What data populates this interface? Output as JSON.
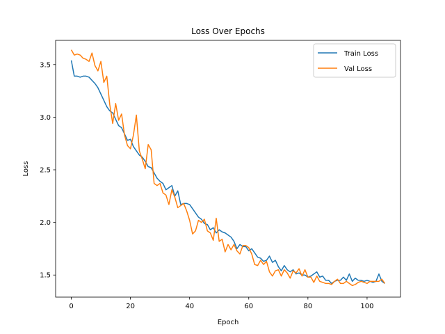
{
  "chart_data": {
    "type": "line",
    "title": "Loss Over Epochs",
    "xlabel": "Epoch",
    "ylabel": "Loss",
    "xlim": [
      -5.3,
      111.3
    ],
    "ylim": [
      1.29,
      3.73
    ],
    "xticks": [
      0,
      20,
      40,
      60,
      80,
      100
    ],
    "yticks": [
      1.5,
      2.0,
      2.5,
      3.0,
      3.5
    ],
    "grid": false,
    "legend_position": "top-right",
    "series": [
      {
        "name": "Train Loss",
        "color": "#1f77b4",
        "points": [
          [
            0,
            3.54
          ],
          [
            1,
            3.39
          ],
          [
            2,
            3.39
          ],
          [
            3,
            3.38
          ],
          [
            4,
            3.39
          ],
          [
            5,
            3.39
          ],
          [
            6,
            3.38
          ],
          [
            7,
            3.35
          ],
          [
            8,
            3.32
          ],
          [
            9,
            3.28
          ],
          [
            10,
            3.22
          ],
          [
            11,
            3.16
          ],
          [
            12,
            3.1
          ],
          [
            13,
            3.06
          ],
          [
            14,
            3.04
          ],
          [
            15,
            2.98
          ],
          [
            16,
            2.92
          ],
          [
            17,
            2.9
          ],
          [
            18,
            2.84
          ],
          [
            19,
            2.78
          ],
          [
            20,
            2.79
          ],
          [
            21,
            2.72
          ],
          [
            22,
            2.68
          ],
          [
            23,
            2.64
          ],
          [
            24,
            2.62
          ],
          [
            25,
            2.58
          ],
          [
            26,
            2.53
          ],
          [
            27,
            2.52
          ],
          [
            28,
            2.47
          ],
          [
            29,
            2.42
          ],
          [
            30,
            2.39
          ],
          [
            31,
            2.37
          ],
          [
            32,
            2.31
          ],
          [
            33,
            2.33
          ],
          [
            34,
            2.35
          ],
          [
            35,
            2.25
          ],
          [
            36,
            2.3
          ],
          [
            37,
            2.17
          ],
          [
            38,
            2.18
          ],
          [
            39,
            2.18
          ],
          [
            40,
            2.17
          ],
          [
            41,
            2.13
          ],
          [
            42,
            2.09
          ],
          [
            43,
            2.05
          ],
          [
            44,
            2.03
          ],
          [
            45,
            1.99
          ],
          [
            46,
            1.98
          ],
          [
            47,
            1.93
          ],
          [
            48,
            1.95
          ],
          [
            49,
            1.9
          ],
          [
            50,
            1.93
          ],
          [
            51,
            1.91
          ],
          [
            52,
            1.9
          ],
          [
            53,
            1.88
          ],
          [
            54,
            1.86
          ],
          [
            55,
            1.82
          ],
          [
            56,
            1.75
          ],
          [
            57,
            1.79
          ],
          [
            58,
            1.77
          ],
          [
            59,
            1.77
          ],
          [
            60,
            1.73
          ],
          [
            61,
            1.75
          ],
          [
            62,
            1.71
          ],
          [
            63,
            1.67
          ],
          [
            64,
            1.66
          ],
          [
            65,
            1.63
          ],
          [
            66,
            1.64
          ],
          [
            67,
            1.68
          ],
          [
            68,
            1.62
          ],
          [
            69,
            1.64
          ],
          [
            70,
            1.58
          ],
          [
            71,
            1.54
          ],
          [
            72,
            1.59
          ],
          [
            73,
            1.55
          ],
          [
            74,
            1.53
          ],
          [
            75,
            1.55
          ],
          [
            76,
            1.51
          ],
          [
            77,
            1.52
          ],
          [
            78,
            1.5
          ],
          [
            79,
            1.5
          ],
          [
            80,
            1.48
          ],
          [
            81,
            1.49
          ],
          [
            82,
            1.51
          ],
          [
            83,
            1.53
          ],
          [
            84,
            1.48
          ],
          [
            85,
            1.49
          ],
          [
            86,
            1.45
          ],
          [
            87,
            1.45
          ],
          [
            88,
            1.42
          ],
          [
            89,
            1.44
          ],
          [
            90,
            1.45
          ],
          [
            91,
            1.45
          ],
          [
            92,
            1.48
          ],
          [
            93,
            1.45
          ],
          [
            94,
            1.51
          ],
          [
            95,
            1.44
          ],
          [
            96,
            1.47
          ],
          [
            97,
            1.45
          ],
          [
            98,
            1.45
          ],
          [
            99,
            1.44
          ],
          [
            100,
            1.45
          ],
          [
            101,
            1.44
          ],
          [
            102,
            1.43
          ],
          [
            103,
            1.44
          ],
          [
            104,
            1.51
          ],
          [
            105,
            1.44
          ],
          [
            106,
            1.42
          ]
        ]
      },
      {
        "name": "Val Loss",
        "color": "#ff7f0e",
        "points": [
          [
            0,
            3.64
          ],
          [
            1,
            3.59
          ],
          [
            2,
            3.6
          ],
          [
            3,
            3.59
          ],
          [
            4,
            3.56
          ],
          [
            5,
            3.55
          ],
          [
            6,
            3.53
          ],
          [
            7,
            3.61
          ],
          [
            8,
            3.49
          ],
          [
            9,
            3.44
          ],
          [
            10,
            3.53
          ],
          [
            11,
            3.33
          ],
          [
            12,
            3.39
          ],
          [
            13,
            3.12
          ],
          [
            14,
            2.94
          ],
          [
            15,
            3.13
          ],
          [
            16,
            2.97
          ],
          [
            17,
            3.03
          ],
          [
            18,
            2.83
          ],
          [
            19,
            2.73
          ],
          [
            20,
            2.7
          ],
          [
            21,
            2.83
          ],
          [
            22,
            3.02
          ],
          [
            23,
            2.68
          ],
          [
            24,
            2.6
          ],
          [
            25,
            2.51
          ],
          [
            26,
            2.74
          ],
          [
            27,
            2.69
          ],
          [
            28,
            2.37
          ],
          [
            29,
            2.35
          ],
          [
            30,
            2.37
          ],
          [
            31,
            2.28
          ],
          [
            32,
            2.26
          ],
          [
            33,
            2.17
          ],
          [
            34,
            2.31
          ],
          [
            35,
            2.24
          ],
          [
            36,
            2.14
          ],
          [
            37,
            2.16
          ],
          [
            38,
            2.18
          ],
          [
            39,
            2.11
          ],
          [
            40,
            2.02
          ],
          [
            41,
            1.89
          ],
          [
            42,
            1.92
          ],
          [
            43,
            2.02
          ],
          [
            44,
            2.0
          ],
          [
            45,
            2.03
          ],
          [
            46,
            1.92
          ],
          [
            47,
            1.9
          ],
          [
            48,
            1.83
          ],
          [
            49,
            2.04
          ],
          [
            50,
            1.82
          ],
          [
            51,
            1.84
          ],
          [
            52,
            1.72
          ],
          [
            53,
            1.79
          ],
          [
            54,
            1.74
          ],
          [
            55,
            1.79
          ],
          [
            56,
            1.73
          ],
          [
            57,
            1.7
          ],
          [
            58,
            1.78
          ],
          [
            59,
            1.78
          ],
          [
            60,
            1.76
          ],
          [
            61,
            1.7
          ],
          [
            62,
            1.6
          ],
          [
            63,
            1.59
          ],
          [
            64,
            1.64
          ],
          [
            65,
            1.6
          ],
          [
            66,
            1.63
          ],
          [
            67,
            1.53
          ],
          [
            68,
            1.49
          ],
          [
            69,
            1.54
          ],
          [
            70,
            1.55
          ],
          [
            71,
            1.49
          ],
          [
            72,
            1.55
          ],
          [
            73,
            1.52
          ],
          [
            74,
            1.47
          ],
          [
            75,
            1.54
          ],
          [
            76,
            1.52
          ],
          [
            77,
            1.56
          ],
          [
            78,
            1.49
          ],
          [
            79,
            1.55
          ],
          [
            80,
            1.48
          ],
          [
            81,
            1.48
          ],
          [
            82,
            1.43
          ],
          [
            83,
            1.49
          ],
          [
            84,
            1.44
          ],
          [
            85,
            1.43
          ],
          [
            86,
            1.42
          ],
          [
            87,
            1.42
          ],
          [
            88,
            1.41
          ],
          [
            89,
            1.44
          ],
          [
            90,
            1.46
          ],
          [
            91,
            1.42
          ],
          [
            92,
            1.42
          ],
          [
            93,
            1.44
          ],
          [
            94,
            1.42
          ],
          [
            95,
            1.4
          ],
          [
            96,
            1.41
          ],
          [
            97,
            1.43
          ],
          [
            98,
            1.44
          ],
          [
            99,
            1.43
          ],
          [
            100,
            1.42
          ],
          [
            101,
            1.44
          ],
          [
            102,
            1.44
          ],
          [
            103,
            1.44
          ],
          [
            104,
            1.44
          ],
          [
            105,
            1.46
          ],
          [
            106,
            1.42
          ]
        ]
      }
    ]
  }
}
